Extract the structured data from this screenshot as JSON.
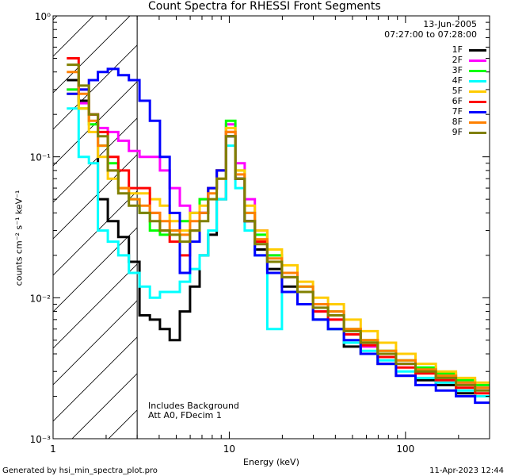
{
  "chart_data": {
    "type": "line",
    "title": "Count Spectra for RHESSI Front Segments",
    "xlabel": "Energy (keV)",
    "ylabel": "counts cm⁻² s⁻¹ keV⁻¹",
    "x_scale": "log",
    "y_scale": "log",
    "xlim": [
      1,
      300
    ],
    "ylim": [
      0.001,
      1
    ],
    "x_ticks": [
      {
        "value": 1,
        "label": "1"
      },
      {
        "value": 10,
        "label": "10"
      },
      {
        "value": 100,
        "label": "100"
      }
    ],
    "y_ticks": [
      {
        "value": 0.001,
        "label": "10⁻³"
      },
      {
        "value": 0.01,
        "label": "10⁻²"
      },
      {
        "value": 0.1,
        "label": "10⁻¹"
      },
      {
        "value": 1,
        "label": "10⁰"
      }
    ],
    "shaded_region": {
      "x_min": 1,
      "x_max": 3,
      "pattern": "diagonal-hatch"
    },
    "date": "13-Jun-2005",
    "time_range": "07:27:00 to 07:28:00",
    "annotations": [
      "Includes Background",
      "Att A0, FDecim 1"
    ],
    "series": [
      {
        "name": "1F",
        "color": "#000000",
        "x": [
          1.3,
          1.5,
          1.7,
          1.9,
          2.2,
          2.5,
          2.9,
          3.3,
          3.8,
          4.3,
          4.9,
          5.6,
          6.4,
          7.2,
          8.0,
          9.0,
          10.2,
          11.5,
          13,
          15,
          18,
          22,
          27,
          33,
          40,
          50,
          62,
          78,
          100,
          130,
          170,
          220,
          280
        ],
        "y": [
          0.35,
          0.25,
          0.2,
          0.05,
          0.035,
          0.027,
          0.018,
          0.0075,
          0.007,
          0.006,
          0.005,
          0.008,
          0.012,
          0.02,
          0.028,
          0.05,
          0.14,
          0.07,
          0.035,
          0.022,
          0.016,
          0.012,
          0.009,
          0.007,
          0.006,
          0.0045,
          0.004,
          0.0034,
          0.0028,
          0.0026,
          0.0024,
          0.0021,
          0.002
        ]
      },
      {
        "name": "2F",
        "color": "#ff00ff",
        "x": [
          1.3,
          1.5,
          1.7,
          1.9,
          2.2,
          2.5,
          2.9,
          3.3,
          3.8,
          4.3,
          4.9,
          5.6,
          6.4,
          7.2,
          8.0,
          9.0,
          10.2,
          11.5,
          13,
          15,
          18,
          22,
          27,
          33,
          40,
          50,
          62,
          78,
          100,
          130,
          170,
          220,
          280
        ],
        "y": [
          0.3,
          0.24,
          0.2,
          0.16,
          0.15,
          0.13,
          0.11,
          0.1,
          0.1,
          0.08,
          0.06,
          0.045,
          0.04,
          0.05,
          0.06,
          0.08,
          0.17,
          0.09,
          0.05,
          0.03,
          0.02,
          0.015,
          0.011,
          0.008,
          0.007,
          0.0055,
          0.0045,
          0.004,
          0.0034,
          0.003,
          0.0028,
          0.0025,
          0.0023
        ]
      },
      {
        "name": "3F",
        "color": "#00ff00",
        "x": [
          1.3,
          1.5,
          1.7,
          1.9,
          2.2,
          2.5,
          2.9,
          3.3,
          3.8,
          4.3,
          4.9,
          5.6,
          6.4,
          7.2,
          8.0,
          9.0,
          10.2,
          11.5,
          13,
          15,
          18,
          22,
          27,
          33,
          40,
          50,
          62,
          78,
          100,
          130,
          170,
          220,
          280
        ],
        "y": [
          0.3,
          0.22,
          0.17,
          0.12,
          0.09,
          0.06,
          0.05,
          0.04,
          0.03,
          0.028,
          0.03,
          0.035,
          0.04,
          0.05,
          0.06,
          0.08,
          0.18,
          0.08,
          0.04,
          0.028,
          0.02,
          0.015,
          0.012,
          0.009,
          0.008,
          0.006,
          0.005,
          0.0042,
          0.0036,
          0.0032,
          0.0029,
          0.0026,
          0.0024
        ]
      },
      {
        "name": "4F",
        "color": "#00ffff",
        "x": [
          1.3,
          1.5,
          1.7,
          1.9,
          2.2,
          2.5,
          2.9,
          3.3,
          3.8,
          4.3,
          4.9,
          5.6,
          6.4,
          7.2,
          8.0,
          9.0,
          10.2,
          11.5,
          13,
          15,
          18,
          22,
          27,
          33,
          40,
          50,
          62,
          78,
          100,
          130,
          170,
          220,
          280
        ],
        "y": [
          0.22,
          0.1,
          0.09,
          0.03,
          0.025,
          0.02,
          0.015,
          0.012,
          0.01,
          0.011,
          0.011,
          0.013,
          0.016,
          0.02,
          0.03,
          0.05,
          0.12,
          0.06,
          0.03,
          0.02,
          0.006,
          0.011,
          0.009,
          0.007,
          0.006,
          0.0048,
          0.0042,
          0.0036,
          0.003,
          0.0027,
          0.0025,
          0.0022,
          0.002
        ]
      },
      {
        "name": "5F",
        "color": "#ffcc00",
        "x": [
          1.3,
          1.5,
          1.7,
          1.9,
          2.2,
          2.5,
          2.9,
          3.3,
          3.8,
          4.3,
          4.9,
          5.6,
          6.4,
          7.2,
          8.0,
          9.0,
          10.2,
          11.5,
          13,
          15,
          18,
          22,
          27,
          33,
          40,
          50,
          62,
          78,
          100,
          130,
          170,
          220,
          280
        ],
        "y": [
          0.28,
          0.22,
          0.15,
          0.1,
          0.07,
          0.06,
          0.055,
          0.055,
          0.05,
          0.045,
          0.035,
          0.03,
          0.04,
          0.045,
          0.06,
          0.08,
          0.16,
          0.08,
          0.045,
          0.03,
          0.022,
          0.017,
          0.013,
          0.01,
          0.009,
          0.007,
          0.0058,
          0.0048,
          0.004,
          0.0034,
          0.003,
          0.0027,
          0.0025
        ]
      },
      {
        "name": "6F",
        "color": "#ff0000",
        "x": [
          1.3,
          1.5,
          1.7,
          1.9,
          2.2,
          2.5,
          2.9,
          3.3,
          3.8,
          4.3,
          4.9,
          5.6,
          6.4,
          7.2,
          8.0,
          9.0,
          10.2,
          11.5,
          13,
          15,
          18,
          22,
          27,
          33,
          40,
          50,
          62,
          78,
          100,
          130,
          170,
          220,
          280
        ],
        "y": [
          0.5,
          0.3,
          0.2,
          0.15,
          0.1,
          0.08,
          0.06,
          0.06,
          0.04,
          0.03,
          0.025,
          0.02,
          0.03,
          0.04,
          0.06,
          0.08,
          0.15,
          0.07,
          0.035,
          0.025,
          0.018,
          0.014,
          0.011,
          0.008,
          0.007,
          0.0055,
          0.0046,
          0.0038,
          0.0032,
          0.0029,
          0.0026,
          0.0023,
          0.0021
        ]
      },
      {
        "name": "7F",
        "color": "#0000ff",
        "x": [
          1.3,
          1.5,
          1.7,
          1.9,
          2.2,
          2.5,
          2.9,
          3.3,
          3.8,
          4.3,
          4.9,
          5.6,
          6.4,
          7.2,
          8.0,
          9.0,
          10.2,
          11.5,
          13,
          15,
          18,
          22,
          27,
          33,
          40,
          50,
          62,
          78,
          100,
          130,
          170,
          220,
          280
        ],
        "y": [
          0.28,
          0.3,
          0.35,
          0.4,
          0.42,
          0.38,
          0.35,
          0.25,
          0.18,
          0.1,
          0.04,
          0.015,
          0.025,
          0.04,
          0.06,
          0.08,
          0.14,
          0.07,
          0.035,
          0.02,
          0.015,
          0.011,
          0.009,
          0.007,
          0.006,
          0.005,
          0.004,
          0.0034,
          0.0028,
          0.0024,
          0.0022,
          0.002,
          0.0018
        ]
      },
      {
        "name": "8F",
        "color": "#ff8000",
        "x": [
          1.3,
          1.5,
          1.7,
          1.9,
          2.2,
          2.5,
          2.9,
          3.3,
          3.8,
          4.3,
          4.9,
          5.6,
          6.4,
          7.2,
          8.0,
          9.0,
          10.2,
          11.5,
          13,
          15,
          18,
          22,
          27,
          33,
          40,
          50,
          62,
          78,
          100,
          130,
          170,
          220,
          280
        ],
        "y": [
          0.4,
          0.28,
          0.18,
          0.12,
          0.08,
          0.06,
          0.05,
          0.045,
          0.04,
          0.035,
          0.03,
          0.028,
          0.035,
          0.04,
          0.055,
          0.07,
          0.15,
          0.075,
          0.04,
          0.026,
          0.019,
          0.015,
          0.012,
          0.009,
          0.008,
          0.006,
          0.005,
          0.0042,
          0.0036,
          0.0031,
          0.0028,
          0.0025,
          0.0023
        ]
      },
      {
        "name": "9F",
        "color": "#808000",
        "x": [
          1.3,
          1.5,
          1.7,
          1.9,
          2.2,
          2.5,
          2.9,
          3.3,
          3.8,
          4.3,
          4.9,
          5.6,
          6.4,
          7.2,
          8.0,
          9.0,
          10.2,
          11.5,
          13,
          15,
          18,
          22,
          27,
          33,
          40,
          50,
          62,
          78,
          100,
          130,
          170,
          220,
          280
        ],
        "y": [
          0.45,
          0.32,
          0.2,
          0.14,
          0.08,
          0.055,
          0.045,
          0.04,
          0.035,
          0.03,
          0.028,
          0.025,
          0.03,
          0.035,
          0.05,
          0.07,
          0.14,
          0.07,
          0.035,
          0.024,
          0.018,
          0.014,
          0.011,
          0.0085,
          0.0075,
          0.0058,
          0.0048,
          0.004,
          0.0034,
          0.003,
          0.0027,
          0.0024,
          0.0022
        ]
      }
    ]
  },
  "footer": {
    "generated_by": "Generated by hsi_min_spectra_plot.pro",
    "timestamp": "11-Apr-2023 12:44"
  }
}
